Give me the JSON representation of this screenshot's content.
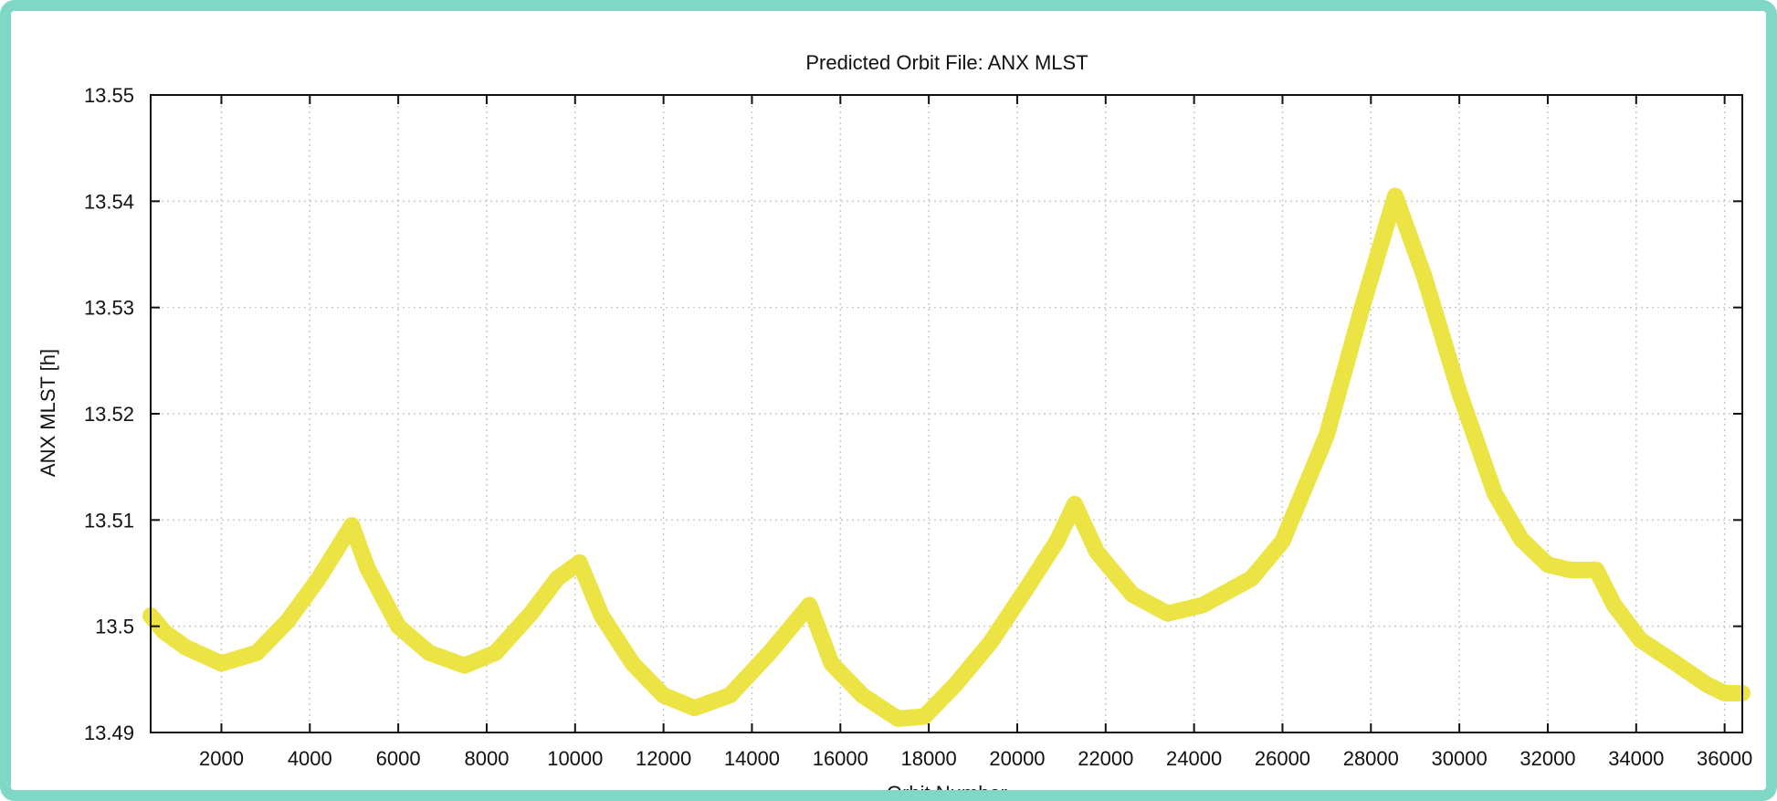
{
  "chart_data": {
    "type": "line",
    "title": "Predicted Orbit File: ANX MLST",
    "xlabel": "Orbit Number",
    "ylabel": "ANX MLST [h]",
    "xlim": [
      400,
      36400
    ],
    "ylim": [
      13.49,
      13.55
    ],
    "x_ticks": [
      2000,
      4000,
      6000,
      8000,
      10000,
      12000,
      14000,
      16000,
      18000,
      20000,
      22000,
      24000,
      26000,
      28000,
      30000,
      32000,
      34000,
      36000
    ],
    "y_ticks": [
      13.49,
      13.5,
      13.51,
      13.52,
      13.53,
      13.54,
      13.55
    ],
    "y_tick_labels": [
      "13.49",
      "13.5",
      "13.51",
      "13.52",
      "13.53",
      "13.54",
      "13.55"
    ],
    "grid": true,
    "series": [
      {
        "color": "#ece444",
        "x": [
          400,
          700,
          1200,
          2000,
          2800,
          3500,
          4200,
          4950,
          5300,
          6000,
          6700,
          7500,
          8200,
          9000,
          9600,
          10100,
          10600,
          11300,
          12000,
          12700,
          13500,
          14400,
          15300,
          15800,
          16500,
          17300,
          17900,
          18600,
          19400,
          20200,
          20900,
          21300,
          21800,
          22600,
          23400,
          24200,
          25300,
          26000,
          27000,
          27800,
          28550,
          29200,
          30000,
          30800,
          31400,
          32000,
          32500,
          33100,
          33500,
          34100,
          34900,
          35600,
          36000,
          36400
        ],
        "y": [
          13.501,
          13.4995,
          13.498,
          13.4965,
          13.4975,
          13.5005,
          13.5045,
          13.5095,
          13.5055,
          13.5,
          13.4975,
          13.4963,
          13.4975,
          13.5012,
          13.5045,
          13.506,
          13.501,
          13.4965,
          13.4935,
          13.4923,
          13.4935,
          13.4975,
          13.502,
          13.4965,
          13.4935,
          13.4913,
          13.4915,
          13.4945,
          13.4985,
          13.5035,
          13.508,
          13.5115,
          13.507,
          13.503,
          13.5012,
          13.502,
          13.5045,
          13.508,
          13.518,
          13.53,
          13.5405,
          13.533,
          13.522,
          13.5125,
          13.5082,
          13.5058,
          13.5053,
          13.5053,
          13.502,
          13.4987,
          13.4965,
          13.4945,
          13.4937,
          13.4937
        ]
      }
    ]
  }
}
